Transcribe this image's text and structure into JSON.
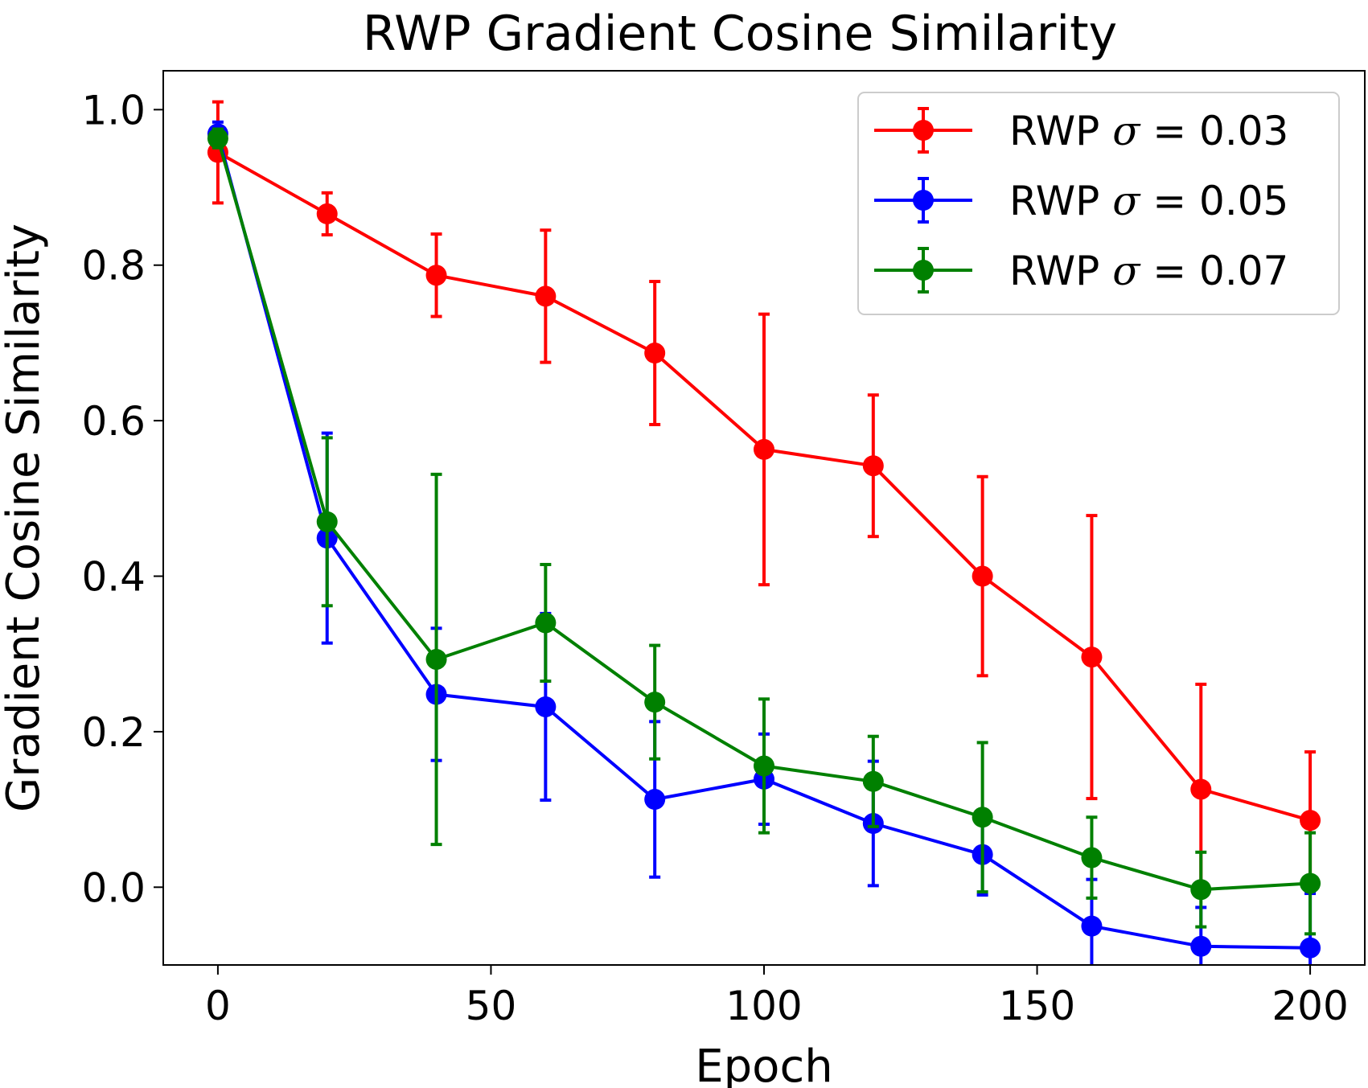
{
  "chart_data": {
    "type": "line",
    "title": "RWP Gradient Cosine Similarity",
    "xlabel": "Epoch",
    "ylabel": "Gradient Cosine Similarity",
    "xlim": [
      -10,
      210
    ],
    "ylim": [
      -0.1,
      1.05
    ],
    "xticks": [
      0,
      50,
      100,
      150,
      200
    ],
    "xtick_labels": [
      "0",
      "50",
      "100",
      "150",
      "200"
    ],
    "yticks": [
      0.0,
      0.2,
      0.4,
      0.6,
      0.8,
      1.0
    ],
    "ytick_labels": [
      "0.0",
      "0.2",
      "0.4",
      "0.6",
      "0.8",
      "1.0"
    ],
    "grid": false,
    "legend_position": "top-right",
    "x": [
      0,
      20,
      40,
      60,
      80,
      100,
      120,
      140,
      160,
      180,
      200
    ],
    "series": [
      {
        "name": "RWP σ = 0.03",
        "legend_prefix": "RWP ",
        "legend_symbol": "σ",
        "legend_suffix": " = 0.03",
        "color": "#ff0000",
        "values": [
          0.945,
          0.866,
          0.787,
          0.76,
          0.687,
          0.563,
          0.542,
          0.4,
          0.296,
          0.126,
          0.086
        ],
        "errors": [
          0.065,
          0.027,
          0.053,
          0.085,
          0.092,
          0.174,
          0.091,
          0.128,
          0.182,
          0.135,
          0.088
        ]
      },
      {
        "name": "RWP σ = 0.05",
        "legend_prefix": "RWP ",
        "legend_symbol": "σ",
        "legend_suffix": " = 0.05",
        "color": "#0000ff",
        "values": [
          0.969,
          0.449,
          0.248,
          0.232,
          0.113,
          0.139,
          0.082,
          0.042,
          -0.05,
          -0.076,
          -0.078
        ],
        "errors": [
          0.015,
          0.135,
          0.085,
          0.12,
          0.1,
          0.058,
          0.08,
          0.052,
          0.06,
          0.05,
          0.07
        ]
      },
      {
        "name": "RWP σ = 0.07",
        "legend_prefix": "RWP ",
        "legend_symbol": "σ",
        "legend_suffix": " = 0.07",
        "color": "#008000",
        "values": [
          0.963,
          0.47,
          0.293,
          0.34,
          0.238,
          0.156,
          0.136,
          0.09,
          0.038,
          -0.003,
          0.005
        ],
        "errors": [
          0.012,
          0.108,
          0.238,
          0.075,
          0.073,
          0.086,
          0.058,
          0.096,
          0.052,
          0.048,
          0.065
        ]
      }
    ]
  }
}
